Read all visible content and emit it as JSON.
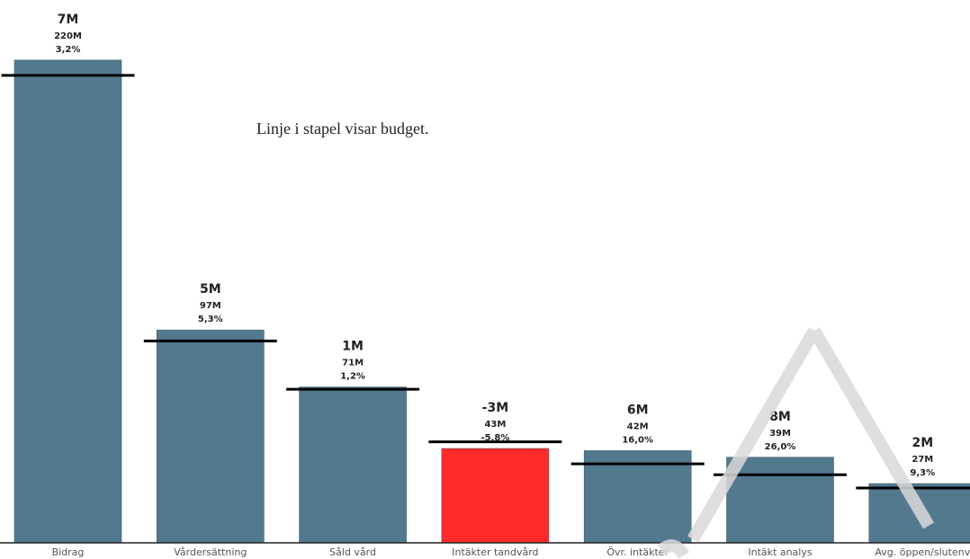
{
  "chart_data": {
    "type": "bar",
    "annotation": "Linje i stapel visar budget.",
    "categories": [
      "Bidrag",
      "Vårdersättning",
      "Såld vård",
      "Intäkter tandvård",
      "Övr. intäkter",
      "Intäkt analys",
      "Avg. öppen/slutenv"
    ],
    "values": [
      220,
      97,
      71,
      43,
      42,
      39,
      27
    ],
    "value_labels": [
      "220M",
      "97M",
      "71M",
      "43M",
      "42M",
      "39M",
      "27M"
    ],
    "budget": [
      213,
      92,
      70,
      46,
      36,
      31,
      25
    ],
    "deviation": [
      7,
      5,
      1,
      -3,
      6,
      8,
      2
    ],
    "deviation_labels": [
      "7M",
      "5M",
      "1M",
      "-3M",
      "6M",
      "8M",
      "2M"
    ],
    "percent": [
      3.2,
      5.3,
      1.2,
      -5.8,
      16.0,
      26.0,
      9.3
    ],
    "percent_labels": [
      "3,2%",
      "5,3%",
      "1,2%",
      "-5,8%",
      "16,0%",
      "26,0%",
      "9,3%"
    ],
    "colors": [
      "#53798f",
      "#53798f",
      "#53798f",
      "#ff2a2a",
      "#53798f",
      "#53798f",
      "#53798f"
    ],
    "budget_color": "#000000",
    "ylim": [
      0,
      240
    ]
  }
}
